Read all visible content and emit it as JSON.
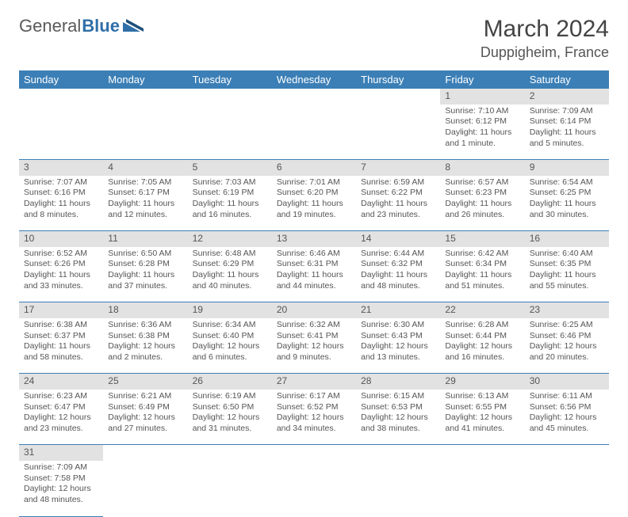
{
  "logo": {
    "text1": "General",
    "text2": "Blue"
  },
  "title": "March 2024",
  "location": "Duppigheim, France",
  "headers": [
    "Sunday",
    "Monday",
    "Tuesday",
    "Wednesday",
    "Thursday",
    "Friday",
    "Saturday"
  ],
  "header_bg": "#3b7fb6",
  "header_fg": "#ffffff",
  "daynum_bg": "#e2e2e2",
  "border_color": "#3b7fb6",
  "weeks": [
    [
      null,
      null,
      null,
      null,
      null,
      {
        "d": "1",
        "sr": "Sunrise: 7:10 AM",
        "ss": "Sunset: 6:12 PM",
        "dl": "Daylight: 11 hours and 1 minute."
      },
      {
        "d": "2",
        "sr": "Sunrise: 7:09 AM",
        "ss": "Sunset: 6:14 PM",
        "dl": "Daylight: 11 hours and 5 minutes."
      }
    ],
    [
      {
        "d": "3",
        "sr": "Sunrise: 7:07 AM",
        "ss": "Sunset: 6:16 PM",
        "dl": "Daylight: 11 hours and 8 minutes."
      },
      {
        "d": "4",
        "sr": "Sunrise: 7:05 AM",
        "ss": "Sunset: 6:17 PM",
        "dl": "Daylight: 11 hours and 12 minutes."
      },
      {
        "d": "5",
        "sr": "Sunrise: 7:03 AM",
        "ss": "Sunset: 6:19 PM",
        "dl": "Daylight: 11 hours and 16 minutes."
      },
      {
        "d": "6",
        "sr": "Sunrise: 7:01 AM",
        "ss": "Sunset: 6:20 PM",
        "dl": "Daylight: 11 hours and 19 minutes."
      },
      {
        "d": "7",
        "sr": "Sunrise: 6:59 AM",
        "ss": "Sunset: 6:22 PM",
        "dl": "Daylight: 11 hours and 23 minutes."
      },
      {
        "d": "8",
        "sr": "Sunrise: 6:57 AM",
        "ss": "Sunset: 6:23 PM",
        "dl": "Daylight: 11 hours and 26 minutes."
      },
      {
        "d": "9",
        "sr": "Sunrise: 6:54 AM",
        "ss": "Sunset: 6:25 PM",
        "dl": "Daylight: 11 hours and 30 minutes."
      }
    ],
    [
      {
        "d": "10",
        "sr": "Sunrise: 6:52 AM",
        "ss": "Sunset: 6:26 PM",
        "dl": "Daylight: 11 hours and 33 minutes."
      },
      {
        "d": "11",
        "sr": "Sunrise: 6:50 AM",
        "ss": "Sunset: 6:28 PM",
        "dl": "Daylight: 11 hours and 37 minutes."
      },
      {
        "d": "12",
        "sr": "Sunrise: 6:48 AM",
        "ss": "Sunset: 6:29 PM",
        "dl": "Daylight: 11 hours and 40 minutes."
      },
      {
        "d": "13",
        "sr": "Sunrise: 6:46 AM",
        "ss": "Sunset: 6:31 PM",
        "dl": "Daylight: 11 hours and 44 minutes."
      },
      {
        "d": "14",
        "sr": "Sunrise: 6:44 AM",
        "ss": "Sunset: 6:32 PM",
        "dl": "Daylight: 11 hours and 48 minutes."
      },
      {
        "d": "15",
        "sr": "Sunrise: 6:42 AM",
        "ss": "Sunset: 6:34 PM",
        "dl": "Daylight: 11 hours and 51 minutes."
      },
      {
        "d": "16",
        "sr": "Sunrise: 6:40 AM",
        "ss": "Sunset: 6:35 PM",
        "dl": "Daylight: 11 hours and 55 minutes."
      }
    ],
    [
      {
        "d": "17",
        "sr": "Sunrise: 6:38 AM",
        "ss": "Sunset: 6:37 PM",
        "dl": "Daylight: 11 hours and 58 minutes."
      },
      {
        "d": "18",
        "sr": "Sunrise: 6:36 AM",
        "ss": "Sunset: 6:38 PM",
        "dl": "Daylight: 12 hours and 2 minutes."
      },
      {
        "d": "19",
        "sr": "Sunrise: 6:34 AM",
        "ss": "Sunset: 6:40 PM",
        "dl": "Daylight: 12 hours and 6 minutes."
      },
      {
        "d": "20",
        "sr": "Sunrise: 6:32 AM",
        "ss": "Sunset: 6:41 PM",
        "dl": "Daylight: 12 hours and 9 minutes."
      },
      {
        "d": "21",
        "sr": "Sunrise: 6:30 AM",
        "ss": "Sunset: 6:43 PM",
        "dl": "Daylight: 12 hours and 13 minutes."
      },
      {
        "d": "22",
        "sr": "Sunrise: 6:28 AM",
        "ss": "Sunset: 6:44 PM",
        "dl": "Daylight: 12 hours and 16 minutes."
      },
      {
        "d": "23",
        "sr": "Sunrise: 6:25 AM",
        "ss": "Sunset: 6:46 PM",
        "dl": "Daylight: 12 hours and 20 minutes."
      }
    ],
    [
      {
        "d": "24",
        "sr": "Sunrise: 6:23 AM",
        "ss": "Sunset: 6:47 PM",
        "dl": "Daylight: 12 hours and 23 minutes."
      },
      {
        "d": "25",
        "sr": "Sunrise: 6:21 AM",
        "ss": "Sunset: 6:49 PM",
        "dl": "Daylight: 12 hours and 27 minutes."
      },
      {
        "d": "26",
        "sr": "Sunrise: 6:19 AM",
        "ss": "Sunset: 6:50 PM",
        "dl": "Daylight: 12 hours and 31 minutes."
      },
      {
        "d": "27",
        "sr": "Sunrise: 6:17 AM",
        "ss": "Sunset: 6:52 PM",
        "dl": "Daylight: 12 hours and 34 minutes."
      },
      {
        "d": "28",
        "sr": "Sunrise: 6:15 AM",
        "ss": "Sunset: 6:53 PM",
        "dl": "Daylight: 12 hours and 38 minutes."
      },
      {
        "d": "29",
        "sr": "Sunrise: 6:13 AM",
        "ss": "Sunset: 6:55 PM",
        "dl": "Daylight: 12 hours and 41 minutes."
      },
      {
        "d": "30",
        "sr": "Sunrise: 6:11 AM",
        "ss": "Sunset: 6:56 PM",
        "dl": "Daylight: 12 hours and 45 minutes."
      }
    ],
    [
      {
        "d": "31",
        "sr": "Sunrise: 7:09 AM",
        "ss": "Sunset: 7:58 PM",
        "dl": "Daylight: 12 hours and 48 minutes."
      },
      null,
      null,
      null,
      null,
      null,
      null
    ]
  ]
}
